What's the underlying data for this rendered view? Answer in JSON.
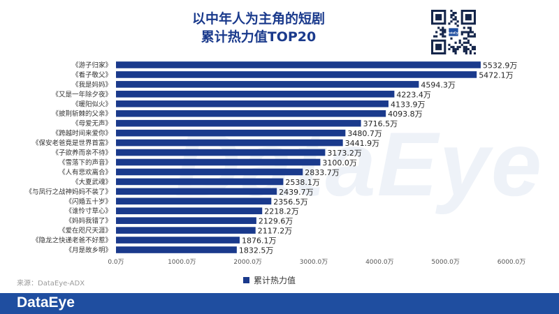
{
  "title_line1": "以中年人为主角的短剧",
  "title_line2": "累计热力值TOP20",
  "source": "来源：DataEye-ADX",
  "brand": "DataEye",
  "watermark": "DataEye",
  "qr_center_text": "DataEye",
  "colors": {
    "bar": "#1a3a8c",
    "footer": "#1f4ea0",
    "title": "#1a3a8c"
  },
  "chart_data": {
    "type": "bar",
    "orientation": "horizontal",
    "categories": [
      "《游子归家》",
      "《看子敬父》",
      "《我是妈妈》",
      "《又是一年除夕夜》",
      "《暖阳似火》",
      "《披荆斩棘的父亲》",
      "《母爱无声》",
      "《跨越时间来爱你》",
      "《保安老爸竟是世界首富》",
      "《子欲养而亲不待》",
      "《雪落下的声音》",
      "《人有悲欢离合》",
      "《大夏武魂》",
      "《与凤行之战神妈妈不装了》",
      "《闪婚五十岁》",
      "《谁怜寸草心》",
      "《妈妈我错了》",
      "《爱在咫尺天涯》",
      "《隐龙之快递老爸不好惹》",
      "《月是故乡明》"
    ],
    "values": [
      5532.9,
      5472.1,
      4594.3,
      4223.4,
      4133.9,
      4093.8,
      3716.5,
      3480.7,
      3441.9,
      3173.2,
      3100.0,
      2833.7,
      2538.1,
      2439.7,
      2356.5,
      2218.2,
      2129.6,
      2117.2,
      1876.1,
      1832.5
    ],
    "value_labels": [
      "5532.9万",
      "5472.1万",
      "4594.3万",
      "4223.4万",
      "4133.9万",
      "4093.8万",
      "3716.5万",
      "3480.7万",
      "3441.9万",
      "3173.2万",
      "3100.0万",
      "2833.7万",
      "2538.1万",
      "2439.7万",
      "2356.5万",
      "2218.2万",
      "2129.6万",
      "2117.2万",
      "1876.1万",
      "1832.5万"
    ],
    "xlim": [
      0,
      6000
    ],
    "xticks": [
      0,
      1000,
      2000,
      3000,
      4000,
      5000,
      6000
    ],
    "xtick_labels": [
      "0.0万",
      "1000.0万",
      "2000.0万",
      "3000.0万",
      "4000.0万",
      "5000.0万",
      "6000.0万"
    ],
    "series": [
      {
        "name": "累计热力值",
        "values": [
          5532.9,
          5472.1,
          4594.3,
          4223.4,
          4133.9,
          4093.8,
          3716.5,
          3480.7,
          3441.9,
          3173.2,
          3100.0,
          2833.7,
          2538.1,
          2439.7,
          2356.5,
          2218.2,
          2129.6,
          2117.2,
          1876.1,
          1832.5
        ]
      }
    ],
    "legend_position": "bottom-center",
    "grid": false
  }
}
